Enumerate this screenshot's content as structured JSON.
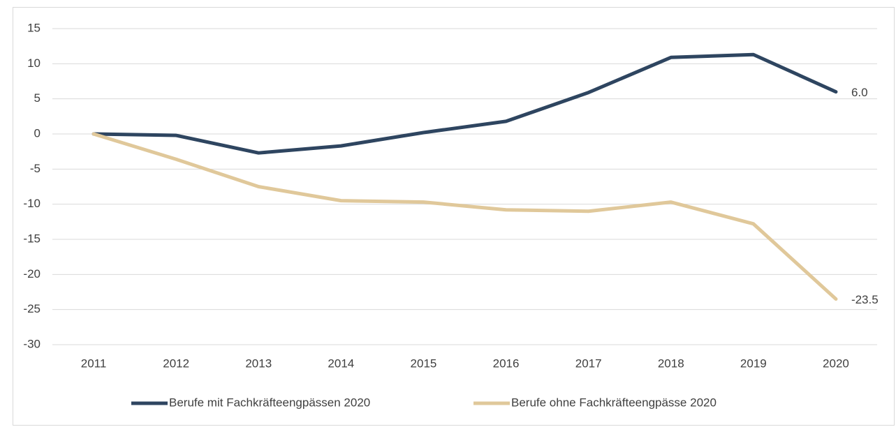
{
  "chart_data": {
    "type": "line",
    "categories": [
      "2011",
      "2012",
      "2013",
      "2014",
      "2015",
      "2016",
      "2017",
      "2018",
      "2019",
      "2020"
    ],
    "series": [
      {
        "name": "Berufe mit Fachkräfteengpässen 2020",
        "color": "#2e4560",
        "values": [
          0,
          -0.2,
          -2.7,
          -1.7,
          0.2,
          1.8,
          5.9,
          10.9,
          11.3,
          6.0
        ],
        "value_labels": [
          null,
          null,
          null,
          null,
          null,
          null,
          null,
          null,
          null,
          "6.0"
        ]
      },
      {
        "name": "Berufe ohne Fachkräfteengpässe 2020",
        "color": "#e0c89a",
        "values": [
          0,
          -3.6,
          -7.5,
          -9.5,
          -9.7,
          -10.8,
          -11.0,
          -9.7,
          -12.8,
          -23.5
        ],
        "value_labels": [
          null,
          null,
          null,
          null,
          null,
          null,
          null,
          null,
          null,
          "-23.5"
        ]
      }
    ],
    "ylim": [
      -30,
      15
    ],
    "yticks": [
      15,
      10,
      5,
      0,
      -5,
      -10,
      -15,
      -20,
      -25,
      -30
    ],
    "grid": true,
    "legend": "bottom"
  }
}
